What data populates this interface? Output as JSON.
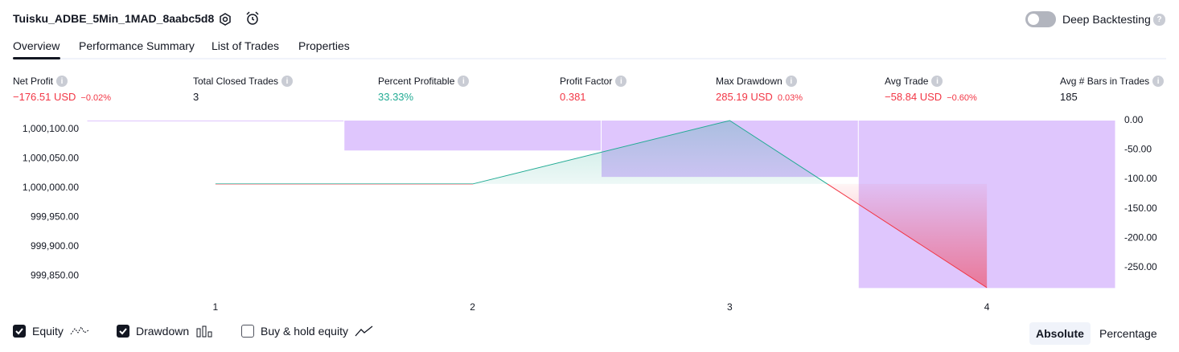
{
  "header": {
    "title": "Tuisku_ADBE_5Min_1MAD_8aabc5d8",
    "toggle_label": "Deep Backtesting",
    "toggle_on": false
  },
  "tabs": {
    "items": [
      "Overview",
      "Performance Summary",
      "List of Trades",
      "Properties"
    ],
    "active": 0
  },
  "metrics": [
    {
      "label": "Net Profit",
      "value": "−176.51 USD",
      "change": "−0.02%",
      "color": "#f23645"
    },
    {
      "label": "Total Closed Trades",
      "value": "3",
      "color": "#131722"
    },
    {
      "label": "Percent Profitable",
      "value": "33.33%",
      "color": "#22ab94"
    },
    {
      "label": "Profit Factor",
      "value": "0.381",
      "color": "#f23645"
    },
    {
      "label": "Max Drawdown",
      "value": "285.19 USD",
      "change": "0.03%",
      "color": "#f23645"
    },
    {
      "label": "Avg Trade",
      "value": "−58.84 USD",
      "change": "−0.60%",
      "color": "#f23645"
    },
    {
      "label": "Avg # Bars in Trades",
      "value": "185",
      "color": "#131722"
    }
  ],
  "chart_data": {
    "type": "equity",
    "categories": [
      "1",
      "2",
      "3",
      "4"
    ],
    "series": [
      {
        "name": "Equity",
        "color": "#22ab94",
        "negative_color": "#f23645",
        "visible": true,
        "values": [
          1000000,
          1000000,
          1000108,
          999823.49
        ]
      },
      {
        "name": "Drawdown",
        "color": "#dcc0fd",
        "visible": true,
        "axis": "y2",
        "values": [
          0,
          -51,
          -96,
          -285.19
        ]
      },
      {
        "name": "Buy & hold equity",
        "visible": false
      }
    ],
    "ylim": [
      999822,
      1000108
    ],
    "yticks": [
      {
        "value": 1000100,
        "label": "1,000,100.00"
      },
      {
        "value": 1000050,
        "label": "1,000,050.00"
      },
      {
        "value": 1000000,
        "label": "1,000,000.00"
      },
      {
        "value": 999950,
        "label": "999,950.00"
      },
      {
        "value": 999900,
        "label": "999,900.00"
      },
      {
        "value": 999850,
        "label": "999,850.00"
      }
    ],
    "y2lim": [
      -286,
      0
    ],
    "y2ticks": [
      {
        "value": 0,
        "label": "0.00"
      },
      {
        "value": -50,
        "label": "-50.00"
      },
      {
        "value": -100,
        "label": "-100.00"
      },
      {
        "value": -150,
        "label": "-150.00"
      },
      {
        "value": -200,
        "label": "-200.00"
      },
      {
        "value": -250,
        "label": "-250.00"
      }
    ]
  },
  "scale_buttons": {
    "items": [
      "Absolute",
      "Percentage"
    ],
    "active": 0
  }
}
